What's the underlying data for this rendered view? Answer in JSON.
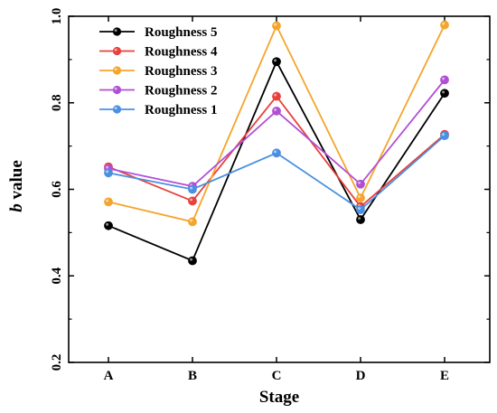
{
  "chart_data": {
    "type": "line",
    "xlabel": "Stage",
    "ylabel": {
      "italic": "b",
      "rest": " value"
    },
    "categories": [
      "A",
      "B",
      "C",
      "D",
      "E"
    ],
    "ylim": [
      0.2,
      1.0
    ],
    "yticks": [
      "0.2",
      "0.4",
      "0.6",
      "0.8",
      "1.0"
    ],
    "legend_position": "top-left",
    "grid": false,
    "series": [
      {
        "name": "Roughness 5",
        "color": "#000000",
        "values": [
          0.516,
          0.435,
          0.895,
          0.53,
          0.822
        ]
      },
      {
        "name": "Roughness 4",
        "color": "#e8403a",
        "values": [
          0.652,
          0.573,
          0.815,
          0.56,
          0.727
        ]
      },
      {
        "name": "Roughness 3",
        "color": "#f4a52c",
        "values": [
          0.571,
          0.525,
          0.978,
          0.58,
          0.98
        ]
      },
      {
        "name": "Roughness 2",
        "color": "#b04fd6",
        "values": [
          0.648,
          0.607,
          0.781,
          0.612,
          0.853
        ]
      },
      {
        "name": "Roughness 1",
        "color": "#4a90e2",
        "values": [
          0.638,
          0.6,
          0.684,
          0.553,
          0.724
        ]
      }
    ]
  }
}
